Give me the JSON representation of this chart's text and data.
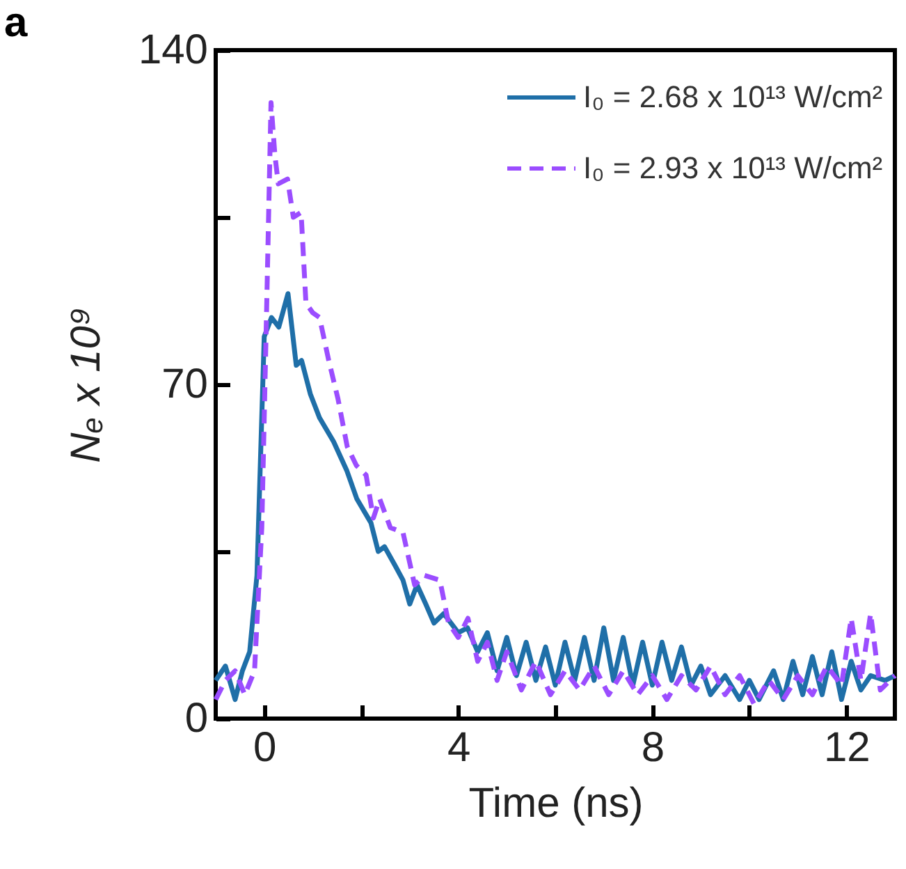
{
  "chart_data": {
    "type": "line",
    "title": "a",
    "xlabel": "Time (ns)",
    "ylabel": "Nₑ x 10⁹",
    "xlim": [
      -1,
      13
    ],
    "xticks": [
      0,
      {
        "value": 2,
        "label": null
      },
      4,
      {
        "value": 6,
        "label": null
      },
      8,
      {
        "value": 10,
        "label": null
      },
      12
    ],
    "ylim": [
      0,
      140
    ],
    "yticks": [
      0,
      {
        "value": 35,
        "label": null
      },
      70,
      {
        "value": 105,
        "label": null
      },
      140
    ],
    "grid": false,
    "legend": "top right",
    "series": [
      {
        "name": "I₀ = 2.68 x 10¹³ W/cm²",
        "color": "#1f6fa8",
        "line_style": "solid",
        "x": [
          -1,
          -0.8,
          -0.6,
          -0.45,
          -0.3,
          -0.15,
          0,
          0.15,
          0.3,
          0.49,
          0.66,
          0.77,
          0.95,
          1.14,
          1.43,
          1.7,
          1.91,
          2.2,
          2.35,
          2.48,
          2.7,
          2.86,
          3.0,
          3.15,
          3.33,
          3.5,
          3.7,
          4.0,
          4.19,
          4.4,
          4.6,
          4.8,
          5.0,
          5.2,
          5.4,
          5.6,
          5.8,
          6.0,
          6.2,
          6.4,
          6.6,
          6.8,
          7.0,
          7.2,
          7.4,
          7.6,
          7.8,
          8.0,
          8.2,
          8.4,
          8.6,
          8.8,
          9.0,
          9.2,
          9.5,
          9.8,
          10.0,
          10.2,
          10.5,
          10.7,
          10.9,
          11.1,
          11.3,
          11.5,
          11.7,
          11.9,
          12.1,
          12.3,
          12.5,
          12.8,
          13
        ],
        "values": [
          8,
          11,
          4,
          10,
          14,
          30,
          80,
          84,
          82,
          89,
          74,
          75,
          68,
          63,
          58,
          52,
          46,
          41,
          35,
          36,
          32,
          29,
          24,
          28,
          24,
          20,
          22,
          18,
          19,
          14,
          18,
          10,
          17,
          9,
          16,
          8,
          15,
          7,
          16,
          8,
          17,
          8,
          19,
          8,
          17,
          7,
          16,
          7,
          16,
          8,
          15,
          7,
          11,
          5,
          9,
          4,
          8,
          4,
          10,
          4,
          12,
          5,
          13,
          5,
          14,
          4,
          12,
          6,
          9,
          8,
          9
        ]
      },
      {
        "name": "I₀ = 2.93 x 10¹³ W/cm²",
        "color": "#9b4dff",
        "line_style": "dashed",
        "x": [
          -1,
          -0.8,
          -0.6,
          -0.4,
          -0.2,
          -0.05,
          0.05,
          0.14,
          0.22,
          0.29,
          0.48,
          0.6,
          0.76,
          0.86,
          1.0,
          1.14,
          1.33,
          1.52,
          1.71,
          1.9,
          2.1,
          2.25,
          2.38,
          2.6,
          2.86,
          3.1,
          3.3,
          3.62,
          3.8,
          4.0,
          4.2,
          4.4,
          4.6,
          4.8,
          5.0,
          5.3,
          5.6,
          5.9,
          6.2,
          6.5,
          6.8,
          7.1,
          7.4,
          7.7,
          8.0,
          8.3,
          8.6,
          8.9,
          9.2,
          9.5,
          9.8,
          10.1,
          10.4,
          10.7,
          11.0,
          11.3,
          11.6,
          11.9,
          12.1,
          12.3,
          12.5,
          12.7,
          12.9,
          13
        ],
        "values": [
          4,
          8,
          10,
          5,
          10,
          40,
          86,
          129,
          118,
          112,
          113,
          105,
          106,
          87,
          85,
          84,
          75,
          67,
          57,
          53,
          51,
          42,
          46,
          40,
          39,
          28,
          30,
          29,
          20,
          17,
          21,
          12,
          16,
          8,
          14,
          6,
          12,
          5,
          10,
          6,
          11,
          5,
          10,
          5,
          9,
          4,
          9,
          6,
          11,
          5,
          9,
          3,
          8,
          4,
          9,
          5,
          11,
          7,
          21,
          8,
          22,
          6,
          8,
          9
        ]
      }
    ]
  }
}
